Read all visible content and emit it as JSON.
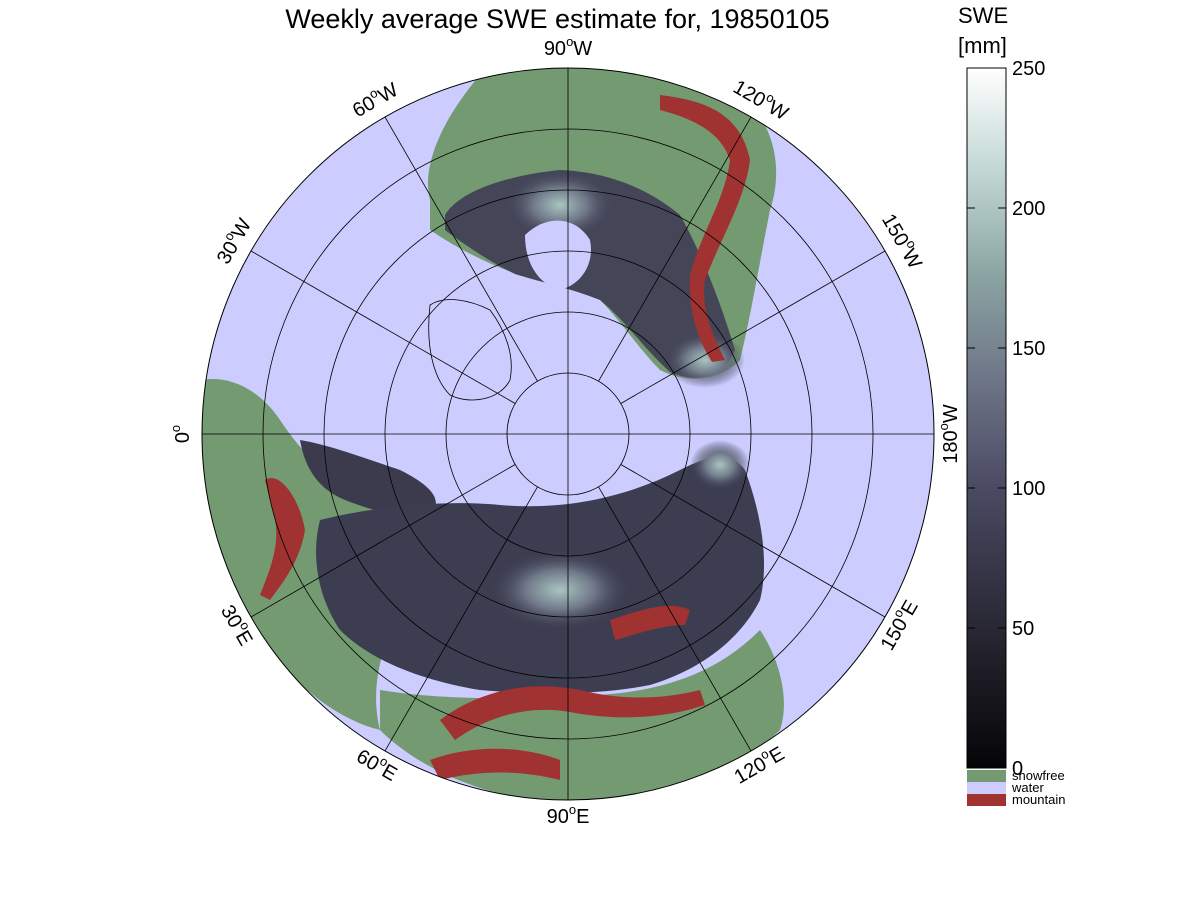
{
  "title": "Weekly average SWE estimate for, 19850105",
  "colorbar": {
    "label_line1": "SWE",
    "label_line2": "[mm]",
    "ticks": [
      0,
      50,
      100,
      150,
      200,
      250
    ],
    "range": [
      0,
      250
    ],
    "categories": [
      {
        "name": "snowfree",
        "color": "#739a70"
      },
      {
        "name": "water",
        "color": "#ccccff"
      },
      {
        "name": "mountain",
        "color": "#a13232"
      }
    ]
  },
  "map": {
    "projection": "north-polar-stereographic",
    "background_color": "#ccccff",
    "snowfree_color": "#739a70",
    "mountain_color": "#a13232",
    "longitude_labels": [
      {
        "lon": 0,
        "text": "0",
        "deg": "o",
        "hem": ""
      },
      {
        "lon": 30,
        "text": "30",
        "deg": "o",
        "hem": "W"
      },
      {
        "lon": 60,
        "text": "60",
        "deg": "o",
        "hem": "W"
      },
      {
        "lon": 90,
        "text": "90",
        "deg": "o",
        "hem": "W"
      },
      {
        "lon": 120,
        "text": "120",
        "deg": "o",
        "hem": "W"
      },
      {
        "lon": 150,
        "text": "150",
        "deg": "o",
        "hem": "W"
      },
      {
        "lon": 180,
        "text": "180",
        "deg": "o",
        "hem": "W"
      },
      {
        "lon": 210,
        "text": "150",
        "deg": "o",
        "hem": "E"
      },
      {
        "lon": 240,
        "text": "120",
        "deg": "o",
        "hem": "E"
      },
      {
        "lon": 270,
        "text": "90",
        "deg": "o",
        "hem": "E"
      },
      {
        "lon": 300,
        "text": "60",
        "deg": "o",
        "hem": "E"
      },
      {
        "lon": 330,
        "text": "30",
        "deg": "o",
        "hem": "E"
      }
    ],
    "latitude_circles_count": 5,
    "meridian_step_deg": 30
  }
}
